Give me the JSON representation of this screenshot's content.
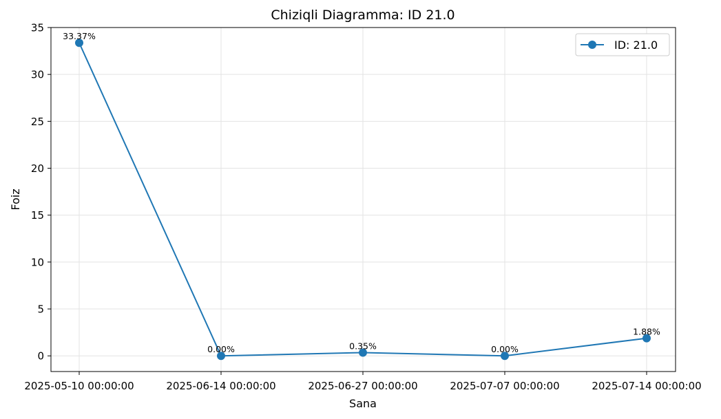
{
  "chart_data": {
    "type": "line",
    "title": "Chiziqli Diagramma: ID 21.0",
    "xlabel": "Sana",
    "ylabel": "Foiz",
    "categories": [
      "2025-05-10 00:00:00",
      "2025-06-14 00:00:00",
      "2025-06-27 00:00:00",
      "2025-07-07 00:00:00",
      "2025-07-14 00:00:00"
    ],
    "series": [
      {
        "name": "ID: 21.0",
        "color": "#1f77b4",
        "values": [
          33.37,
          0.0,
          0.35,
          0.0,
          1.88
        ],
        "labels": [
          "33.37%",
          "0.00%",
          "0.35%",
          "0.00%",
          "1.88%"
        ]
      }
    ],
    "ylim": [
      -1.67,
      35
    ],
    "yticks": [
      0,
      5,
      10,
      15,
      20,
      25,
      30,
      35
    ],
    "grid": true,
    "legend_position": "top-right"
  }
}
